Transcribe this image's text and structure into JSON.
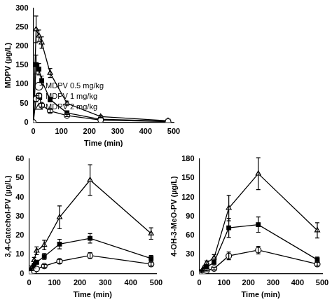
{
  "chart_data": [
    {
      "type": "line",
      "xlabel": "Time (min)",
      "ylabel": "MDPV (µg/L)",
      "x": [
        0,
        10,
        20,
        30,
        60,
        120,
        240,
        480
      ],
      "xlim": [
        0,
        500
      ],
      "xticks": [
        0,
        100,
        200,
        300,
        400,
        500
      ],
      "ylim": [
        0,
        300
      ],
      "yticks": [
        0,
        50,
        100,
        150,
        200,
        250,
        300
      ],
      "grid": false,
      "legend": "upper right",
      "series": [
        {
          "name": "MDPV 0.5 mg/kg",
          "color": "#000000",
          "marker": "open_circle",
          "values": [
            0,
            62,
            70,
            45,
            30,
            18,
            6,
            2
          ],
          "errors": [
            null,
            8,
            6,
            5,
            4,
            3,
            null,
            null
          ]
        },
        {
          "name": "MDPV 1 mg/kg",
          "color": "#000000",
          "marker": "square",
          "values": [
            0,
            152,
            140,
            110,
            60,
            25,
            8,
            3
          ],
          "errors": [
            null,
            25,
            15,
            12,
            6,
            4,
            null,
            null
          ]
        },
        {
          "name": "MDPV 2 mg/kg",
          "color": "#000000",
          "marker": "open_triangle",
          "values": [
            0,
            245,
            228,
            210,
            130,
            50,
            15,
            4
          ],
          "errors": [
            null,
            35,
            15,
            15,
            12,
            6,
            3,
            null
          ]
        }
      ]
    },
    {
      "type": "line",
      "xlabel": "Time (min)",
      "ylabel": "3,4-Catechol-PV (µg/L)",
      "x": [
        0,
        10,
        20,
        30,
        60,
        120,
        240,
        480
      ],
      "xlim": [
        0,
        500
      ],
      "xticks": [
        0,
        100,
        200,
        300,
        400,
        500
      ],
      "ylim": [
        0,
        60
      ],
      "yticks": [
        0,
        10,
        20,
        30,
        40,
        50,
        60
      ],
      "grid": false,
      "series": [
        {
          "name": "MDPV 0.5 mg/kg",
          "color": "#000000",
          "marker": "open_circle",
          "values": [
            0,
            0.5,
            1.5,
            2.5,
            4,
            6.5,
            9.5,
            5
          ],
          "errors": [
            null,
            null,
            null,
            null,
            0.8,
            1,
            1.5,
            1
          ]
        },
        {
          "name": "MDPV 1 mg/kg",
          "color": "#000000",
          "marker": "square",
          "values": [
            0,
            2,
            4,
            6,
            9,
            15.5,
            18.5,
            8
          ],
          "errors": [
            null,
            0.5,
            1,
            1,
            1.5,
            2.5,
            2.5,
            1.5
          ]
        },
        {
          "name": "MDPV 2 mg/kg",
          "color": "#000000",
          "marker": "open_triangle",
          "values": [
            0,
            3,
            7,
            12,
            15,
            29.5,
            49,
            21
          ],
          "errors": [
            null,
            1,
            1.5,
            2,
            2.5,
            6,
            8,
            3
          ]
        }
      ]
    },
    {
      "type": "line",
      "xlabel": "Time (min)",
      "ylabel": "4-OH-3-MeO-PV (µg/L)",
      "x": [
        0,
        10,
        20,
        30,
        60,
        120,
        240,
        480
      ],
      "xlim": [
        0,
        500
      ],
      "xticks": [
        0,
        100,
        200,
        300,
        400,
        500
      ],
      "ylim": [
        0,
        180
      ],
      "yticks": [
        0,
        30,
        60,
        90,
        120,
        150,
        180
      ],
      "grid": false,
      "series": [
        {
          "name": "MDPV 0.5 mg/kg",
          "color": "#000000",
          "marker": "open_circle",
          "values": [
            0,
            1,
            3,
            5,
            8,
            28,
            37,
            15
          ],
          "errors": [
            null,
            null,
            null,
            1,
            2,
            6,
            6,
            3
          ]
        },
        {
          "name": "MDPV 1 mg/kg",
          "color": "#000000",
          "marker": "square",
          "values": [
            0,
            3,
            7,
            10,
            18,
            72,
            77,
            22
          ],
          "errors": [
            null,
            1,
            1.5,
            2,
            3,
            15,
            12,
            4
          ]
        },
        {
          "name": "MDPV 2 mg/kg",
          "color": "#000000",
          "marker": "open_triangle",
          "values": [
            0,
            4,
            10,
            17,
            25,
            103,
            157,
            68
          ],
          "errors": [
            null,
            1,
            2,
            3,
            5,
            20,
            25,
            12
          ]
        }
      ]
    }
  ]
}
